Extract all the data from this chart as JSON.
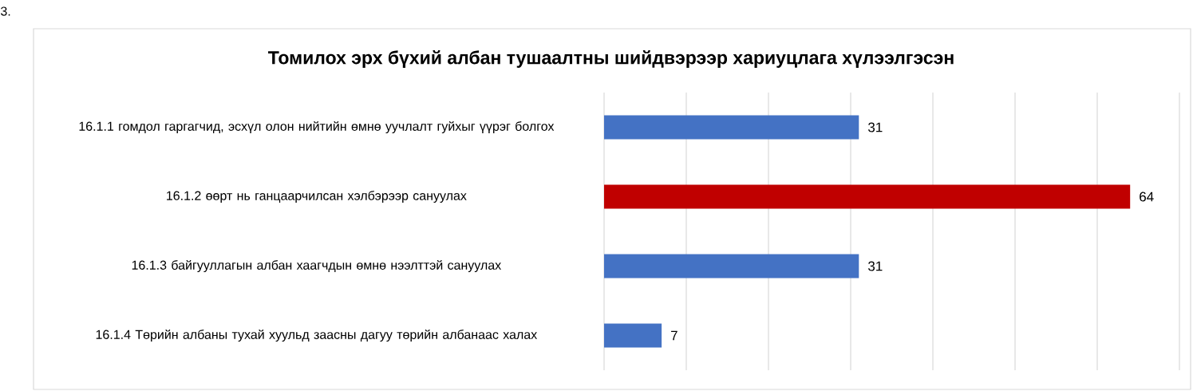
{
  "chart_data": {
    "type": "bar",
    "orientation": "horizontal",
    "title": "Томилох эрх бүхий албан тушаалтны шийдвэрээр хариуцлага хүлээлгэсэн",
    "annotations": [
      "3."
    ],
    "categories": [
      "16.1.1 гомдол гаргагчид, эсхүл олон нийтийн өмнө уучлалт гуйхыг үүрэг болгох",
      "16.1.2 өөрт нь ганцаарчилсан хэлбэрээр сануулах",
      "16.1.3 байгууллагын албан хаагчдын өмнө нээлттэй сануулах",
      "16.1.4 Төрийн албаны тухай хуульд заасны дагуу төрийн албанаас халах"
    ],
    "values": [
      31,
      64,
      31,
      7
    ],
    "colors": [
      "#4472c4",
      "#c00000",
      "#4472c4",
      "#4472c4"
    ],
    "xlim": [
      0,
      70
    ],
    "xticks": [
      {
        "value": 0,
        "label": null
      },
      {
        "value": 10,
        "label": null
      },
      {
        "value": 20,
        "label": null
      },
      {
        "value": 30,
        "label": null
      },
      {
        "value": 40,
        "label": null
      },
      {
        "value": 50,
        "label": null
      },
      {
        "value": 60,
        "label": null
      },
      {
        "value": 70,
        "label": null
      }
    ],
    "grid": "x",
    "tick_labels": "y",
    "data_labels": true
  }
}
